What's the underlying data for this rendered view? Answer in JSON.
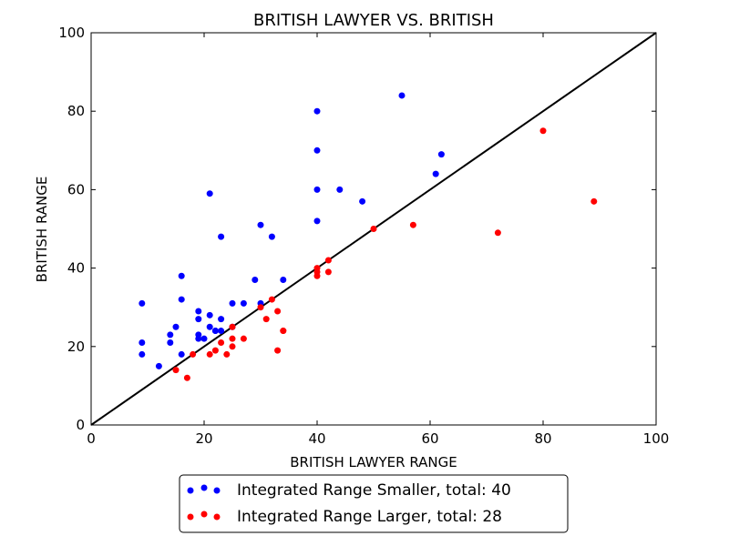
{
  "chart_data": {
    "type": "scatter",
    "title": "BRITISH LAWYER VS. BRITISH",
    "xlabel": "BRITISH LAWYER RANGE",
    "ylabel": "BRITISH RANGE",
    "xlim": [
      0,
      100
    ],
    "ylim": [
      0,
      100
    ],
    "xticks": [
      0,
      20,
      40,
      60,
      80,
      100
    ],
    "yticks": [
      0,
      20,
      40,
      60,
      80,
      100
    ],
    "grid": false,
    "legend_position": "bottom-center",
    "reference_line": {
      "from": [
        0,
        0
      ],
      "to": [
        100,
        100
      ],
      "color": "#000000"
    },
    "series": [
      {
        "name": "Integrated Range Smaller, total: 40",
        "color": "#0000ff",
        "points": [
          [
            9,
            31
          ],
          [
            9,
            21
          ],
          [
            9,
            18
          ],
          [
            12,
            15
          ],
          [
            14,
            23
          ],
          [
            14,
            21
          ],
          [
            15,
            25
          ],
          [
            16,
            38
          ],
          [
            16,
            32
          ],
          [
            16,
            18
          ],
          [
            19,
            29
          ],
          [
            19,
            27
          ],
          [
            19,
            23
          ],
          [
            19,
            22
          ],
          [
            20,
            22
          ],
          [
            21,
            59
          ],
          [
            21,
            28
          ],
          [
            21,
            25
          ],
          [
            22,
            24
          ],
          [
            23,
            48
          ],
          [
            23,
            27
          ],
          [
            23,
            24
          ],
          [
            25,
            31
          ],
          [
            27,
            31
          ],
          [
            29,
            37
          ],
          [
            30,
            51
          ],
          [
            30,
            31
          ],
          [
            32,
            48
          ],
          [
            34,
            37
          ],
          [
            40,
            80
          ],
          [
            40,
            70
          ],
          [
            40,
            60
          ],
          [
            40,
            52
          ],
          [
            44,
            60
          ],
          [
            48,
            57
          ],
          [
            55,
            84
          ],
          [
            61,
            64
          ],
          [
            62,
            69
          ],
          [
            25,
            25
          ],
          [
            22,
            24
          ]
        ]
      },
      {
        "name": "Integrated Range Larger, total: 28",
        "color": "#ff0000",
        "points": [
          [
            15,
            14
          ],
          [
            17,
            12
          ],
          [
            18,
            18
          ],
          [
            21,
            18
          ],
          [
            22,
            19
          ],
          [
            23,
            21
          ],
          [
            24,
            18
          ],
          [
            25,
            22
          ],
          [
            25,
            20
          ],
          [
            25,
            25
          ],
          [
            27,
            22
          ],
          [
            30,
            30
          ],
          [
            31,
            27
          ],
          [
            32,
            32
          ],
          [
            33,
            29
          ],
          [
            33,
            19
          ],
          [
            34,
            24
          ],
          [
            40,
            40
          ],
          [
            40,
            38
          ],
          [
            42,
            42
          ],
          [
            42,
            39
          ],
          [
            50,
            50
          ],
          [
            57,
            51
          ],
          [
            72,
            49
          ],
          [
            80,
            75
          ],
          [
            89,
            57
          ],
          [
            34,
            24
          ],
          [
            40,
            39
          ]
        ]
      }
    ]
  }
}
